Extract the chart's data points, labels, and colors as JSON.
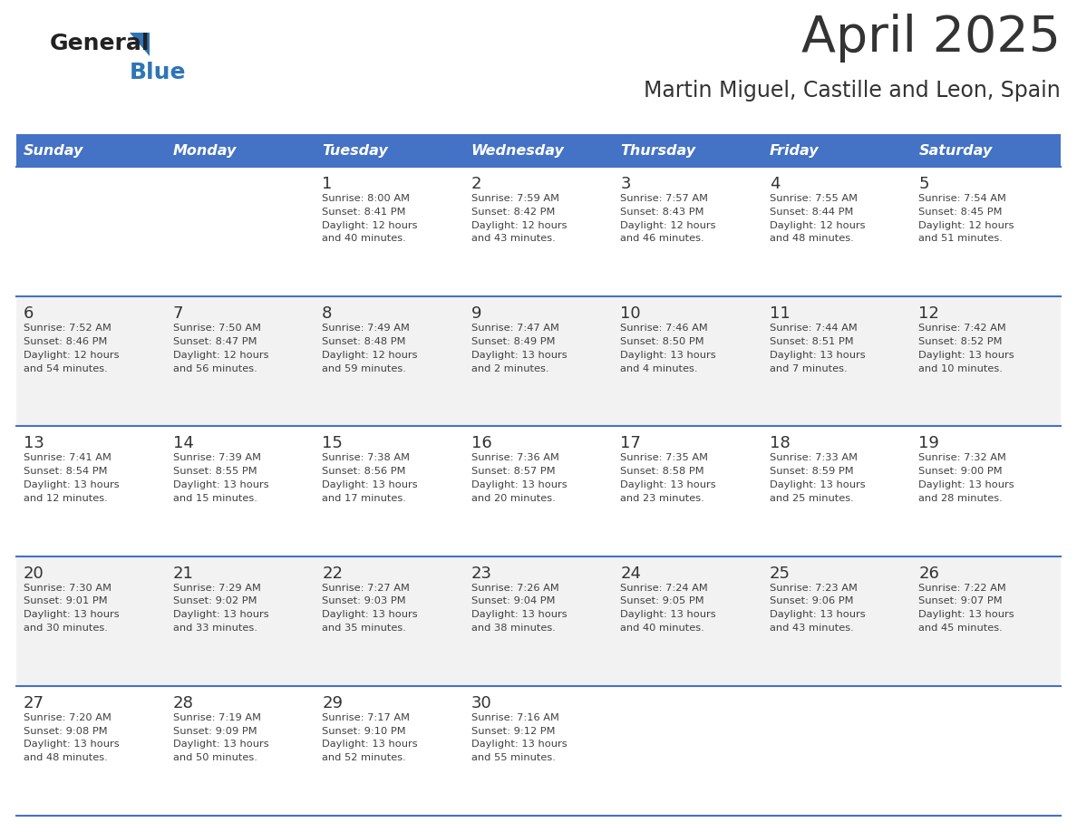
{
  "title": "April 2025",
  "subtitle": "Martin Miguel, Castille and Leon, Spain",
  "header_bg_color": "#4472C4",
  "header_text_color": "#FFFFFF",
  "days_of_week": [
    "Sunday",
    "Monday",
    "Tuesday",
    "Wednesday",
    "Thursday",
    "Friday",
    "Saturday"
  ],
  "row_bg_colors": [
    "#FFFFFF",
    "#F2F2F2",
    "#FFFFFF",
    "#F2F2F2",
    "#FFFFFF"
  ],
  "cell_text_color": "#404040",
  "day_num_color": "#333333",
  "divider_color": "#4472C4",
  "title_color": "#333333",
  "subtitle_color": "#333333",
  "calendar": [
    [
      {
        "day": "",
        "info": ""
      },
      {
        "day": "",
        "info": ""
      },
      {
        "day": "1",
        "info": "Sunrise: 8:00 AM\nSunset: 8:41 PM\nDaylight: 12 hours\nand 40 minutes."
      },
      {
        "day": "2",
        "info": "Sunrise: 7:59 AM\nSunset: 8:42 PM\nDaylight: 12 hours\nand 43 minutes."
      },
      {
        "day": "3",
        "info": "Sunrise: 7:57 AM\nSunset: 8:43 PM\nDaylight: 12 hours\nand 46 minutes."
      },
      {
        "day": "4",
        "info": "Sunrise: 7:55 AM\nSunset: 8:44 PM\nDaylight: 12 hours\nand 48 minutes."
      },
      {
        "day": "5",
        "info": "Sunrise: 7:54 AM\nSunset: 8:45 PM\nDaylight: 12 hours\nand 51 minutes."
      }
    ],
    [
      {
        "day": "6",
        "info": "Sunrise: 7:52 AM\nSunset: 8:46 PM\nDaylight: 12 hours\nand 54 minutes."
      },
      {
        "day": "7",
        "info": "Sunrise: 7:50 AM\nSunset: 8:47 PM\nDaylight: 12 hours\nand 56 minutes."
      },
      {
        "day": "8",
        "info": "Sunrise: 7:49 AM\nSunset: 8:48 PM\nDaylight: 12 hours\nand 59 minutes."
      },
      {
        "day": "9",
        "info": "Sunrise: 7:47 AM\nSunset: 8:49 PM\nDaylight: 13 hours\nand 2 minutes."
      },
      {
        "day": "10",
        "info": "Sunrise: 7:46 AM\nSunset: 8:50 PM\nDaylight: 13 hours\nand 4 minutes."
      },
      {
        "day": "11",
        "info": "Sunrise: 7:44 AM\nSunset: 8:51 PM\nDaylight: 13 hours\nand 7 minutes."
      },
      {
        "day": "12",
        "info": "Sunrise: 7:42 AM\nSunset: 8:52 PM\nDaylight: 13 hours\nand 10 minutes."
      }
    ],
    [
      {
        "day": "13",
        "info": "Sunrise: 7:41 AM\nSunset: 8:54 PM\nDaylight: 13 hours\nand 12 minutes."
      },
      {
        "day": "14",
        "info": "Sunrise: 7:39 AM\nSunset: 8:55 PM\nDaylight: 13 hours\nand 15 minutes."
      },
      {
        "day": "15",
        "info": "Sunrise: 7:38 AM\nSunset: 8:56 PM\nDaylight: 13 hours\nand 17 minutes."
      },
      {
        "day": "16",
        "info": "Sunrise: 7:36 AM\nSunset: 8:57 PM\nDaylight: 13 hours\nand 20 minutes."
      },
      {
        "day": "17",
        "info": "Sunrise: 7:35 AM\nSunset: 8:58 PM\nDaylight: 13 hours\nand 23 minutes."
      },
      {
        "day": "18",
        "info": "Sunrise: 7:33 AM\nSunset: 8:59 PM\nDaylight: 13 hours\nand 25 minutes."
      },
      {
        "day": "19",
        "info": "Sunrise: 7:32 AM\nSunset: 9:00 PM\nDaylight: 13 hours\nand 28 minutes."
      }
    ],
    [
      {
        "day": "20",
        "info": "Sunrise: 7:30 AM\nSunset: 9:01 PM\nDaylight: 13 hours\nand 30 minutes."
      },
      {
        "day": "21",
        "info": "Sunrise: 7:29 AM\nSunset: 9:02 PM\nDaylight: 13 hours\nand 33 minutes."
      },
      {
        "day": "22",
        "info": "Sunrise: 7:27 AM\nSunset: 9:03 PM\nDaylight: 13 hours\nand 35 minutes."
      },
      {
        "day": "23",
        "info": "Sunrise: 7:26 AM\nSunset: 9:04 PM\nDaylight: 13 hours\nand 38 minutes."
      },
      {
        "day": "24",
        "info": "Sunrise: 7:24 AM\nSunset: 9:05 PM\nDaylight: 13 hours\nand 40 minutes."
      },
      {
        "day": "25",
        "info": "Sunrise: 7:23 AM\nSunset: 9:06 PM\nDaylight: 13 hours\nand 43 minutes."
      },
      {
        "day": "26",
        "info": "Sunrise: 7:22 AM\nSunset: 9:07 PM\nDaylight: 13 hours\nand 45 minutes."
      }
    ],
    [
      {
        "day": "27",
        "info": "Sunrise: 7:20 AM\nSunset: 9:08 PM\nDaylight: 13 hours\nand 48 minutes."
      },
      {
        "day": "28",
        "info": "Sunrise: 7:19 AM\nSunset: 9:09 PM\nDaylight: 13 hours\nand 50 minutes."
      },
      {
        "day": "29",
        "info": "Sunrise: 7:17 AM\nSunset: 9:10 PM\nDaylight: 13 hours\nand 52 minutes."
      },
      {
        "day": "30",
        "info": "Sunrise: 7:16 AM\nSunset: 9:12 PM\nDaylight: 13 hours\nand 55 minutes."
      },
      {
        "day": "",
        "info": ""
      },
      {
        "day": "",
        "info": ""
      },
      {
        "day": "",
        "info": ""
      }
    ]
  ],
  "logo_general_color": "#222222",
  "logo_blue_color": "#2E75B6"
}
